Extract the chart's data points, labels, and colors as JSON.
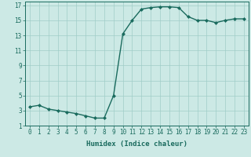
{
  "x": [
    0,
    1,
    2,
    3,
    4,
    5,
    6,
    7,
    8,
    9,
    10,
    11,
    12,
    13,
    14,
    15,
    16,
    17,
    18,
    19,
    20,
    21,
    22,
    23
  ],
  "y": [
    3.5,
    3.7,
    3.2,
    3.0,
    2.8,
    2.6,
    2.3,
    2.0,
    2.0,
    5.0,
    13.2,
    15.0,
    16.5,
    16.7,
    16.8,
    16.8,
    16.7,
    15.5,
    15.0,
    15.0,
    14.7,
    15.0,
    15.2,
    15.2
  ],
  "line_color": "#1a6b5e",
  "marker": "D",
  "marker_size": 2.0,
  "bg_color": "#cce9e5",
  "grid_color": "#a0cdc8",
  "xlabel": "Humidex (Indice chaleur)",
  "xlim": [
    -0.5,
    23.5
  ],
  "ylim": [
    1,
    17.5
  ],
  "yticks": [
    1,
    3,
    5,
    7,
    9,
    11,
    13,
    15,
    17
  ],
  "xticks": [
    0,
    1,
    2,
    3,
    4,
    5,
    6,
    7,
    8,
    9,
    10,
    11,
    12,
    13,
    14,
    15,
    16,
    17,
    18,
    19,
    20,
    21,
    22,
    23
  ],
  "xtick_labels": [
    "0",
    "1",
    "2",
    "3",
    "4",
    "5",
    "6",
    "7",
    "8",
    "9",
    "10",
    "11",
    "12",
    "13",
    "14",
    "15",
    "16",
    "17",
    "18",
    "19",
    "20",
    "21",
    "22",
    "23"
  ],
  "line_width": 1.0,
  "label_fontsize": 6.5,
  "tick_fontsize": 5.5
}
